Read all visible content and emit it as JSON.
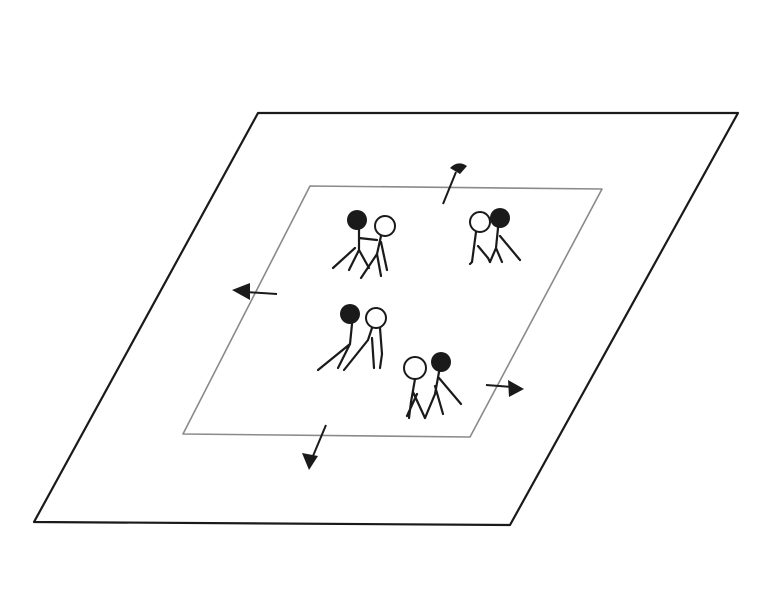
{
  "diagram": {
    "description_visible_text": "",
    "colors": {
      "ink": "#1a1a1a",
      "inner_ink": "#8a8a8a",
      "paper": "#ffffff"
    },
    "outer_area": {
      "shape": "parallelogram"
    },
    "inner_area": {
      "shape": "parallelogram"
    },
    "pairs": [
      {
        "id": "pair-1",
        "filled_side": "left"
      },
      {
        "id": "pair-2",
        "filled_side": "right"
      },
      {
        "id": "pair-3",
        "filled_side": "left"
      },
      {
        "id": "pair-4",
        "filled_side": "right"
      }
    ],
    "arrows": [
      {
        "id": "arrow-up",
        "direction": "up"
      },
      {
        "id": "arrow-left",
        "direction": "left"
      },
      {
        "id": "arrow-right",
        "direction": "right"
      },
      {
        "id": "arrow-down",
        "direction": "down"
      }
    ]
  }
}
